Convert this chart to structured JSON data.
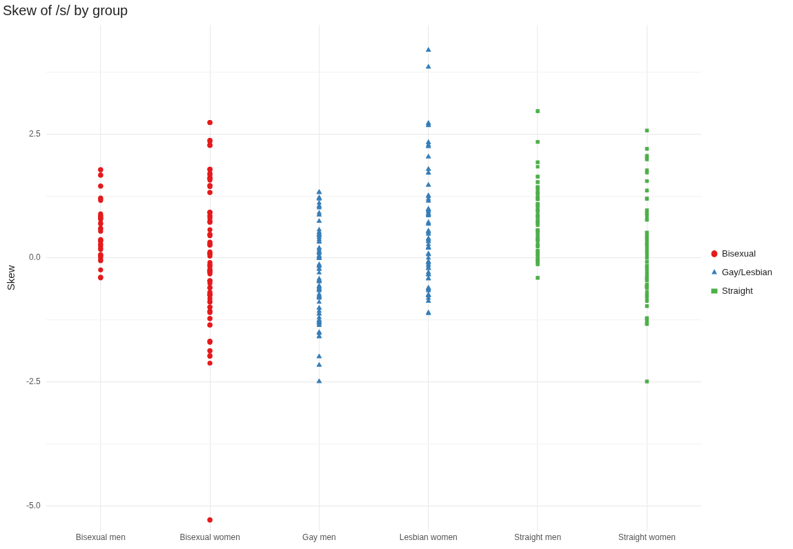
{
  "chart_data": {
    "type": "scatter",
    "title": "Skew of /s/ by group",
    "ylabel": "Skew",
    "categories": [
      "Bisexual men",
      "Bisexual women",
      "Gay men",
      "Lesbian women",
      "Straight men",
      "Straight women"
    ],
    "ylim": [
      -5.5,
      4.7
    ],
    "yticks": [
      {
        "value": -5,
        "label": "-5.0"
      },
      {
        "value": -3.75,
        "label": null
      },
      {
        "value": -2.5,
        "label": "-2.5"
      },
      {
        "value": -1.25,
        "label": null
      },
      {
        "value": 0,
        "label": "0.0"
      },
      {
        "value": 1.25,
        "label": null
      },
      {
        "value": 2.5,
        "label": "2.5"
      },
      {
        "value": 3.75,
        "label": null
      }
    ],
    "grid": true,
    "legend": "right",
    "series": [
      {
        "name": "Bisexual",
        "color": "#e41a1c",
        "marker": "circle",
        "x": [
          "Bisexual men",
          "Bisexual men",
          "Bisexual men",
          "Bisexual men",
          "Bisexual men",
          "Bisexual men",
          "Bisexual men",
          "Bisexual men",
          "Bisexual men",
          "Bisexual men",
          "Bisexual men",
          "Bisexual men",
          "Bisexual men",
          "Bisexual men",
          "Bisexual men",
          "Bisexual men",
          "Bisexual men",
          "Bisexual men",
          "Bisexual men",
          "Bisexual men",
          "Bisexual men",
          "Bisexual men",
          "Bisexual men",
          "Bisexual men",
          "Bisexual men",
          "Bisexual men",
          "Bisexual men",
          "Bisexual men",
          "Bisexual men",
          "Bisexual men",
          "Bisexual men",
          "Bisexual men",
          "Bisexual men",
          "Bisexual men",
          "Bisexual men",
          "Bisexual men",
          "Bisexual men",
          "Bisexual men",
          "Bisexual men",
          "Bisexual men",
          "Bisexual men",
          "Bisexual women",
          "Bisexual women",
          "Bisexual women",
          "Bisexual women",
          "Bisexual women",
          "Bisexual women",
          "Bisexual women",
          "Bisexual women",
          "Bisexual women",
          "Bisexual women",
          "Bisexual women",
          "Bisexual women",
          "Bisexual women",
          "Bisexual women",
          "Bisexual women",
          "Bisexual women",
          "Bisexual women",
          "Bisexual women",
          "Bisexual women",
          "Bisexual women",
          "Bisexual women",
          "Bisexual women",
          "Bisexual women",
          "Bisexual women",
          "Bisexual women",
          "Bisexual women",
          "Bisexual women",
          "Bisexual women",
          "Bisexual women",
          "Bisexual women",
          "Bisexual women",
          "Bisexual women",
          "Bisexual women",
          "Bisexual women",
          "Bisexual women",
          "Bisexual women",
          "Bisexual women",
          "Bisexual women",
          "Bisexual women",
          "Bisexual women",
          "Bisexual women",
          "Bisexual women",
          "Bisexual women",
          "Bisexual women",
          "Bisexual women",
          "Bisexual women",
          "Bisexual women",
          "Bisexual women",
          "Bisexual women",
          "Bisexual women",
          "Bisexual women",
          "Bisexual women",
          "Bisexual women",
          "Bisexual women",
          "Bisexual women",
          "Bisexual women",
          "Bisexual women",
          "Bisexual women",
          "Bisexual women",
          "Bisexual women",
          "Bisexual women",
          "Bisexual women",
          "Bisexual women",
          "Bisexual women",
          "Bisexual women",
          "Bisexual women",
          "Bisexual women",
          "Bisexual women",
          "Bisexual women",
          "Bisexual women",
          "Bisexual women",
          "Bisexual women",
          "Bisexual women",
          "Bisexual women",
          "Bisexual women",
          "Bisexual women",
          "Bisexual women",
          "Bisexual women",
          "Bisexual women",
          "Bisexual women",
          "Bisexual women",
          "Bisexual women",
          "Bisexual women",
          "Bisexual women",
          "Bisexual women",
          "Bisexual women",
          "Bisexual women",
          "Bisexual women",
          "Bisexual women",
          "Bisexual women",
          "Bisexual women",
          "Bisexual women"
        ],
        "values": [
          1.78,
          1.78,
          1.67,
          1.67,
          1.45,
          1.45,
          1.21,
          1.19,
          1.16,
          0.8,
          0.89,
          0.82,
          0.85,
          0.78,
          0.69,
          0.85,
          0.8,
          0.7,
          0.6,
          0.58,
          0.54,
          0.36,
          0.35,
          0.37,
          0.33,
          0.27,
          0.23,
          0.27,
          0.17,
          0.19,
          0.05,
          0.07,
          0,
          0.05,
          -0.05,
          0.03,
          -0.05,
          -0.24,
          -0.39,
          -0.4,
          -0.39,
          2.73,
          2.73,
          2.37,
          2.37,
          2.27,
          2.27,
          2.28,
          2.35,
          1.78,
          1.7,
          1.79,
          1.7,
          1.61,
          1.57,
          1.61,
          1.61,
          1.6,
          1.79,
          1.67,
          1.46,
          1.46,
          1.44,
          1.32,
          1.32,
          0.92,
          0.92,
          0.84,
          0.85,
          0.8,
          0.72,
          0.73,
          0.92,
          0.91,
          0.74,
          0.57,
          0.47,
          0.45,
          0.48,
          0.26,
          0.28,
          0.26,
          0.32,
          0.31,
          0.12,
          0.08,
          0.1,
          0.04,
          0.08,
          -0.13,
          -0.17,
          -0.15,
          -0.28,
          -0.27,
          -0.28,
          -0.28,
          -0.24,
          -0.23,
          -0.32,
          -0.09,
          -0.46,
          -0.46,
          -0.51,
          -0.46,
          -0.6,
          -0.71,
          -0.74,
          -0.82,
          -0.88,
          -0.89,
          -0.75,
          -0.99,
          -0.99,
          -0.75,
          -0.69,
          -0.6,
          -1.07,
          -1.08,
          -1.1,
          -1.22,
          -1.22,
          -1.35,
          -1.35,
          -1.7,
          -1.68,
          -1.68,
          -1.87,
          -1.87,
          -1.98,
          -1.97,
          -2.12,
          -5.28,
          -5.28
        ]
      },
      {
        "name": "Gay/Lesbian",
        "color": "#377eb8",
        "marker": "triangle",
        "x": [
          "Gay men",
          "Gay men",
          "Gay men",
          "Gay men",
          "Gay men",
          "Gay men",
          "Gay men",
          "Gay men",
          "Gay men",
          "Gay men",
          "Gay men",
          "Gay men",
          "Gay men",
          "Gay men",
          "Gay men",
          "Gay men",
          "Gay men",
          "Gay men",
          "Gay men",
          "Gay men",
          "Gay men",
          "Gay men",
          "Gay men",
          "Gay men",
          "Gay men",
          "Gay men",
          "Gay men",
          "Gay men",
          "Gay men",
          "Gay men",
          "Gay men",
          "Gay men",
          "Gay men",
          "Gay men",
          "Gay men",
          "Gay men",
          "Gay men",
          "Gay men",
          "Gay men",
          "Gay men",
          "Gay men",
          "Gay men",
          "Gay men",
          "Gay men",
          "Gay men",
          "Gay men",
          "Gay men",
          "Gay men",
          "Gay men",
          "Gay men",
          "Gay men",
          "Gay men",
          "Gay men",
          "Gay men",
          "Gay men",
          "Gay men",
          "Gay men",
          "Gay men",
          "Gay men",
          "Gay men",
          "Gay men",
          "Gay men",
          "Gay men",
          "Gay men",
          "Gay men",
          "Gay men",
          "Gay men",
          "Gay men",
          "Gay men",
          "Gay men",
          "Gay men",
          "Gay men",
          "Gay men",
          "Gay men",
          "Gay men",
          "Gay men",
          "Gay men",
          "Gay men",
          "Gay men",
          "Gay men",
          "Gay men",
          "Gay men",
          "Gay men",
          "Gay men",
          "Gay men",
          "Gay men",
          "Gay men",
          "Gay men",
          "Lesbian women",
          "Lesbian women",
          "Lesbian women",
          "Lesbian women",
          "Lesbian women",
          "Lesbian women",
          "Lesbian women",
          "Lesbian women",
          "Lesbian women",
          "Lesbian women",
          "Lesbian women",
          "Lesbian women",
          "Lesbian women",
          "Lesbian women",
          "Lesbian women",
          "Lesbian women",
          "Lesbian women",
          "Lesbian women",
          "Lesbian women",
          "Lesbian women",
          "Lesbian women",
          "Lesbian women",
          "Lesbian women",
          "Lesbian women",
          "Lesbian women",
          "Lesbian women",
          "Lesbian women",
          "Lesbian women",
          "Lesbian women",
          "Lesbian women",
          "Lesbian women",
          "Lesbian women",
          "Lesbian women",
          "Lesbian women",
          "Lesbian women",
          "Lesbian women",
          "Lesbian women",
          "Lesbian women",
          "Lesbian women",
          "Lesbian women",
          "Lesbian women",
          "Lesbian women",
          "Lesbian women",
          "Lesbian women",
          "Lesbian women",
          "Lesbian women",
          "Lesbian women",
          "Lesbian women",
          "Lesbian women",
          "Lesbian women",
          "Lesbian women",
          "Lesbian women",
          "Lesbian women",
          "Lesbian women",
          "Lesbian women",
          "Lesbian women",
          "Lesbian women",
          "Lesbian women",
          "Lesbian women",
          "Lesbian women",
          "Lesbian women",
          "Lesbian women",
          "Lesbian women",
          "Lesbian women",
          "Lesbian women",
          "Lesbian women",
          "Lesbian women",
          "Lesbian women",
          "Lesbian women",
          "Lesbian women",
          "Lesbian women",
          "Lesbian women",
          "Lesbian women",
          "Lesbian women",
          "Lesbian women",
          "Lesbian women",
          "Lesbian women",
          "Lesbian women",
          "Lesbian women",
          "Lesbian women",
          "Lesbian women",
          "Lesbian women",
          "Lesbian women",
          "Lesbian women",
          "Lesbian women",
          "Lesbian women"
        ],
        "values": [
          1.32,
          1.32,
          1.33,
          1.2,
          1.22,
          1.19,
          1.2,
          1.11,
          1.05,
          1.04,
          1.01,
          0.91,
          0.87,
          0.87,
          0.74,
          0.74,
          0.57,
          0.51,
          0.46,
          0.48,
          0.52,
          0.42,
          0.46,
          0.38,
          0.32,
          0.34,
          0.2,
          0.2,
          0.12,
          0.11,
          0.12,
          0.16,
          0.04,
          0,
          0.04,
          0.09,
          -0.01,
          -0.01,
          0.02,
          -0.15,
          -0.17,
          -0.23,
          -0.13,
          -0.22,
          -0.3,
          -0.42,
          -0.48,
          -0.46,
          -0.45,
          -0.56,
          -0.58,
          -0.61,
          -0.66,
          -0.63,
          -0.46,
          -0.64,
          -0.77,
          -0.76,
          -0.81,
          -0.73,
          -0.8,
          -0.78,
          -0.89,
          -1.01,
          -1.01,
          -1.07,
          -1.12,
          -1.13,
          -1.2,
          -1.26,
          -1.27,
          -1.25,
          -1.33,
          -1.36,
          -1.3,
          -1.3,
          -1.3,
          -1.5,
          -1.5,
          -1.52,
          -1.58,
          -1.59,
          -1.99,
          -1.99,
          -2.16,
          -2.16,
          -2.49,
          -2.49,
          4.19,
          4.19,
          3.85,
          3.85,
          2.68,
          2.72,
          2.71,
          2.67,
          2.28,
          2.33,
          2.25,
          2.25,
          2.33,
          2.04,
          2.04,
          1.72,
          1.79,
          1.71,
          1.79,
          1.47,
          1.47,
          1.15,
          1.24,
          1.15,
          1.19,
          1.26,
          0.89,
          0.96,
          0.93,
          0.98,
          0.85,
          0.89,
          0.99,
          0.98,
          0.89,
          0.87,
          0.72,
          0.68,
          0.7,
          0.53,
          0.48,
          0.39,
          0.39,
          0.51,
          0.37,
          0.55,
          0.34,
          0.33,
          0.27,
          0.2,
          0.21,
          0.2,
          0.21,
          0.22,
          0,
          0.07,
          0.07,
          0.09,
          -0.07,
          -0.13,
          -0.21,
          -0.21,
          -0.09,
          -0.16,
          -0.09,
          -0.21,
          -0.29,
          -0.33,
          -0.33,
          -0.42,
          -0.41,
          -0.34,
          -0.66,
          -0.75,
          -0.61,
          -0.75,
          -0.74,
          -0.81,
          -0.76,
          -0.6,
          -0.63,
          -0.63,
          -0.87,
          -0.87,
          -1.12,
          -1.1
        ]
      },
      {
        "name": "Straight",
        "color": "#4daf4a",
        "marker": "square",
        "x": [
          "Straight men",
          "Straight men",
          "Straight men",
          "Straight men",
          "Straight men",
          "Straight men",
          "Straight men",
          "Straight men",
          "Straight men",
          "Straight men",
          "Straight men",
          "Straight men",
          "Straight men",
          "Straight men",
          "Straight men",
          "Straight men",
          "Straight men",
          "Straight men",
          "Straight men",
          "Straight men",
          "Straight men",
          "Straight men",
          "Straight men",
          "Straight men",
          "Straight men",
          "Straight men",
          "Straight men",
          "Straight men",
          "Straight men",
          "Straight men",
          "Straight men",
          "Straight men",
          "Straight men",
          "Straight men",
          "Straight men",
          "Straight men",
          "Straight men",
          "Straight men",
          "Straight men",
          "Straight men",
          "Straight men",
          "Straight men",
          "Straight men",
          "Straight men",
          "Straight men",
          "Straight men",
          "Straight men",
          "Straight men",
          "Straight men",
          "Straight men",
          "Straight men",
          "Straight men",
          "Straight men",
          "Straight men",
          "Straight men",
          "Straight men",
          "Straight men",
          "Straight men",
          "Straight men",
          "Straight men",
          "Straight men",
          "Straight men",
          "Straight men",
          "Straight men",
          "Straight men",
          "Straight men",
          "Straight men",
          "Straight men",
          "Straight men",
          "Straight men",
          "Straight men",
          "Straight men",
          "Straight men",
          "Straight men",
          "Straight men",
          "Straight women",
          "Straight women",
          "Straight women",
          "Straight women",
          "Straight women",
          "Straight women",
          "Straight women",
          "Straight women",
          "Straight women",
          "Straight women",
          "Straight women",
          "Straight women",
          "Straight women",
          "Straight women",
          "Straight women",
          "Straight women",
          "Straight women",
          "Straight women",
          "Straight women",
          "Straight women",
          "Straight women",
          "Straight women",
          "Straight women",
          "Straight women",
          "Straight women",
          "Straight women",
          "Straight women",
          "Straight women",
          "Straight women",
          "Straight women",
          "Straight women",
          "Straight women",
          "Straight women",
          "Straight women",
          "Straight women",
          "Straight women",
          "Straight women",
          "Straight women",
          "Straight women",
          "Straight women",
          "Straight women",
          "Straight women",
          "Straight women",
          "Straight women",
          "Straight women",
          "Straight women",
          "Straight women",
          "Straight women",
          "Straight women",
          "Straight women",
          "Straight women",
          "Straight women",
          "Straight women",
          "Straight women",
          "Straight women",
          "Straight women",
          "Straight women",
          "Straight women",
          "Straight women",
          "Straight women",
          "Straight women",
          "Straight women",
          "Straight women",
          "Straight women",
          "Straight women",
          "Straight women",
          "Straight women",
          "Straight women",
          "Straight women",
          "Straight women",
          "Straight women",
          "Straight women",
          "Straight women",
          "Straight women",
          "Straight women",
          "Straight women",
          "Straight women",
          "Straight women",
          "Straight women",
          "Straight women",
          "Straight women",
          "Straight women",
          "Straight women",
          "Straight women",
          "Straight women",
          "Straight women",
          "Straight women",
          "Straight women",
          "Straight women",
          "Straight women",
          "Straight women"
        ],
        "values": [
          2.96,
          2.96,
          2.34,
          2.34,
          1.93,
          1.93,
          1.84,
          1.64,
          1.64,
          1.53,
          1.53,
          1.43,
          1.43,
          1.4,
          1.36,
          1.31,
          1.3,
          1.31,
          1.23,
          1.21,
          1.21,
          1.19,
          1.18,
          1.09,
          1.09,
          1.04,
          1.06,
          1.06,
          0.98,
          0.96,
          0.96,
          0.94,
          0.83,
          0.85,
          0.87,
          0.84,
          0.74,
          0.7,
          0.7,
          0.74,
          0.77,
          0.66,
          0.56,
          0.56,
          0.54,
          0.53,
          0.56,
          0.48,
          0.41,
          0.37,
          0.37,
          0.37,
          0.38,
          0.38,
          0.46,
          0.3,
          0.25,
          0.25,
          0.23,
          0.14,
          0.13,
          0.15,
          0.09,
          0.05,
          0.08,
          0.03,
          -0.03,
          -0.05,
          -0.08,
          -0.06,
          -0.12,
          -0.03,
          -0.13,
          -0.4,
          -0.4,
          2.57,
          2.57,
          2.2,
          2.2,
          2.06,
          1.99,
          2.05,
          1.99,
          2.01,
          1.77,
          1.73,
          1.72,
          1.55,
          1.55,
          1.36,
          1.36,
          1.2,
          1.19,
          1.2,
          0.96,
          0.91,
          0.77,
          0.96,
          0.87,
          0.77,
          0.8,
          0.91,
          0.87,
          0.42,
          0.37,
          0.28,
          0.51,
          0.51,
          0.4,
          0.28,
          0.32,
          0.46,
          0.43,
          0.37,
          0.51,
          0.27,
          0.22,
          0.14,
          0.12,
          0.08,
          0.18,
          0.02,
          0,
          -0.08,
          -0.08,
          -0.16,
          -0.16,
          -0.21,
          -0.2,
          -0.27,
          -0.3,
          -0.34,
          -0.4,
          -0.45,
          -0.4,
          -0.38,
          -0.45,
          -0.43,
          -0.56,
          -0.6,
          -0.56,
          -0.59,
          -0.6,
          -0.57,
          -0.58,
          -0.56,
          -0.53,
          -0.68,
          -0.73,
          -0.82,
          -0.76,
          -0.77,
          -0.87,
          -0.97,
          -0.97,
          -1.22,
          -1.21,
          -1.3,
          -1.25,
          -1.33,
          -1.22,
          -1.33,
          -1.33,
          -1.23,
          -2.49,
          -2.49
        ]
      }
    ]
  }
}
